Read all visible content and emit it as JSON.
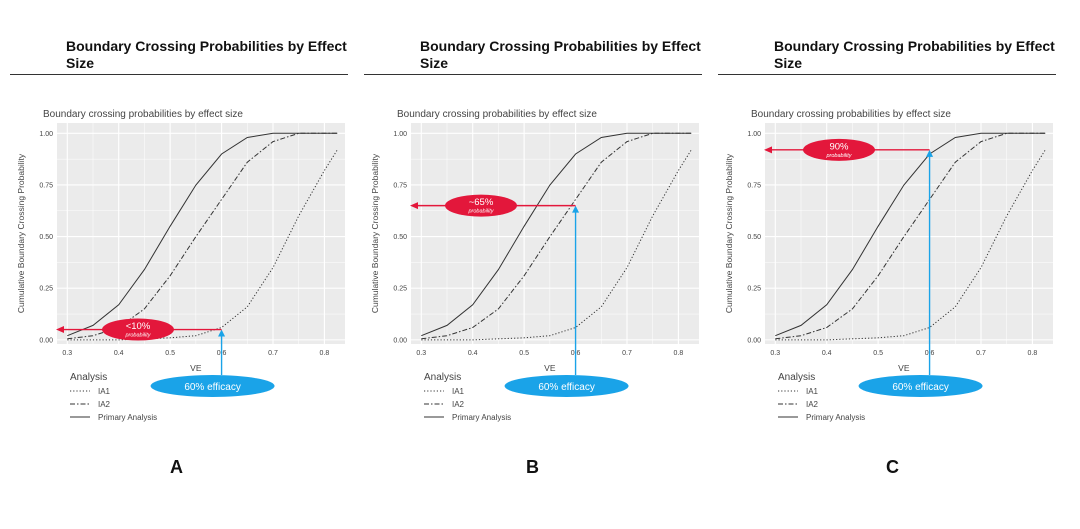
{
  "panels": [
    {
      "letter": "A",
      "heading": "Boundary Crossing Probabilities by Effect Size",
      "callout_pct": "<10%",
      "callout_sub": "probability",
      "callout_y": 0.05,
      "efficacy_label": "60% efficacy"
    },
    {
      "letter": "B",
      "heading": "Boundary Crossing Probabilities by Effect Size",
      "callout_pct": "~65%",
      "callout_sub": "probability",
      "callout_y": 0.65,
      "efficacy_label": "60% efficacy"
    },
    {
      "letter": "C",
      "heading": "Boundary Crossing Probabilities by Effect Size",
      "callout_pct": "90%",
      "callout_sub": "probability",
      "callout_y": 0.92,
      "efficacy_label": "60% efficacy"
    }
  ],
  "colors": {
    "panel_bg": "#ebebeb",
    "grid": "#ffffff",
    "red": "#e3173b",
    "blue": "#1aa3e8"
  },
  "chart_data": {
    "type": "line",
    "title": "Boundary crossing probabilities by effect size",
    "xlabel": "VE",
    "ylabel": "Cumulative Boundary Crossing Probability",
    "xlim": [
      0.28,
      0.84
    ],
    "ylim": [
      -0.02,
      1.05
    ],
    "x_ticks": [
      "0.3",
      "0.4",
      "0.5",
      "0.6",
      "0.7",
      "0.8"
    ],
    "y_ticks": [
      "0.00",
      "0.25",
      "0.50",
      "0.75",
      "1.00"
    ],
    "legend_title": "Analysis",
    "legend_position": "bottom-left",
    "grid": true,
    "marked_x": 0.6,
    "series": [
      {
        "name": "IA1",
        "x": [
          0.3,
          0.35,
          0.4,
          0.45,
          0.5,
          0.55,
          0.6,
          0.65,
          0.7,
          0.75,
          0.8,
          0.825
        ],
        "values": [
          0.0,
          0.0,
          0.0,
          0.005,
          0.01,
          0.02,
          0.06,
          0.16,
          0.35,
          0.6,
          0.82,
          0.92
        ]
      },
      {
        "name": "IA2",
        "x": [
          0.3,
          0.35,
          0.4,
          0.45,
          0.5,
          0.55,
          0.6,
          0.65,
          0.7,
          0.75,
          0.8,
          0.825
        ],
        "values": [
          0.005,
          0.02,
          0.06,
          0.15,
          0.31,
          0.5,
          0.68,
          0.86,
          0.96,
          1.0,
          1.0,
          1.0
        ]
      },
      {
        "name": "Primary Analysis",
        "x": [
          0.3,
          0.35,
          0.4,
          0.45,
          0.5,
          0.55,
          0.6,
          0.65,
          0.7,
          0.75,
          0.8,
          0.825
        ],
        "values": [
          0.02,
          0.07,
          0.17,
          0.34,
          0.55,
          0.75,
          0.9,
          0.98,
          1.0,
          1.0,
          1.0,
          1.0
        ]
      }
    ]
  }
}
